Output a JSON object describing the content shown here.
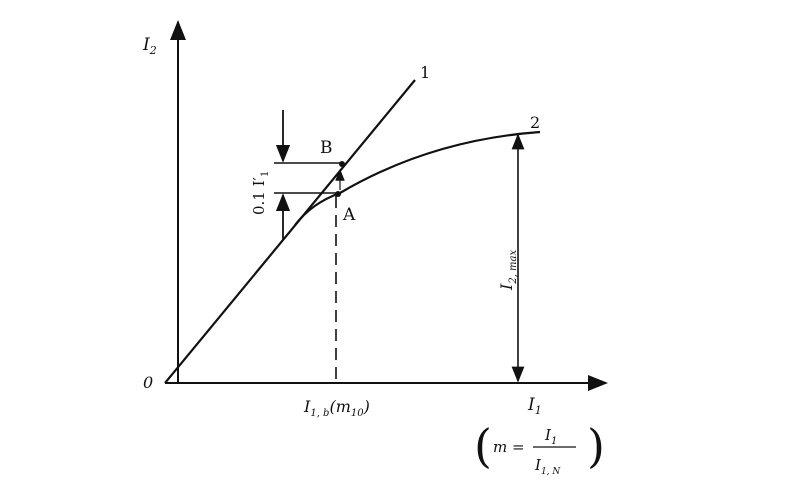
{
  "diagram": {
    "y_axis_label": "I",
    "y_axis_sub": "2",
    "x_axis_label": "I",
    "x_axis_sub": "1",
    "origin_label": "0",
    "curve_1_label": "1",
    "curve_2_label": "2",
    "point_a_label": "A",
    "point_b_label": "B",
    "delta_label": "0.1 I",
    "delta_sup": "′",
    "delta_sub": "1",
    "i2max_label": "I",
    "i2max_sub": "2, max",
    "i1b_label": "I",
    "i1b_sub": "1, b",
    "i1b_paren": "(m",
    "i1b_paren_sub": "10",
    "i1b_close": ")",
    "formula_m": "m =",
    "formula_num": "I",
    "formula_num_sub": "1",
    "formula_den": "I",
    "formula_den_sub": "1, N"
  },
  "colors": {
    "ink": "#111111",
    "background": "#ffffff"
  }
}
